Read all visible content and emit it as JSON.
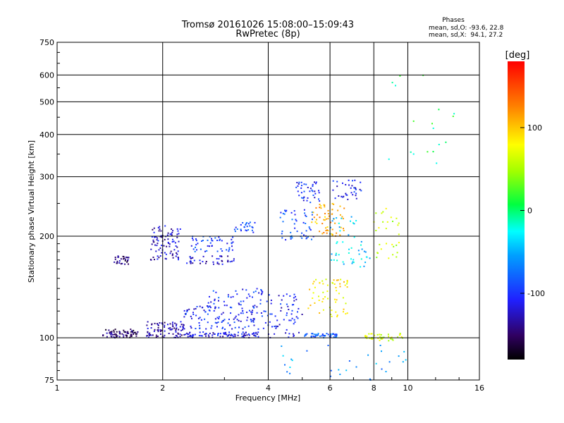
{
  "chart_data": {
    "type": "scatter",
    "title": "Tromsø 20161026 15:08:00–15:09:43",
    "subtitle": "RwPretec (8p)",
    "xlabel": "Frequency [MHz]",
    "ylabel": "Stationary phase Virtual Height [km]",
    "x_scale": "log",
    "y_scale": "log",
    "xlim": [
      1,
      16
    ],
    "ylim": [
      75,
      750
    ],
    "x_ticks": [
      1,
      2,
      4,
      6,
      8,
      10,
      16
    ],
    "y_ticks": [
      75,
      100,
      200,
      300,
      400,
      500,
      600,
      750
    ],
    "grid": true,
    "phases_box": {
      "title": "Phases",
      "line1": "mean, sd,O: -93.6, 22.8",
      "line2": "mean, sd,X:  94.1, 27.2"
    },
    "colorbar": {
      "label": "[deg]",
      "range": [
        -180,
        180
      ],
      "ticks": [
        100,
        0,
        -100
      ],
      "colormap": "rainbow"
    },
    "clusters": [
      {
        "x": [
          1.35,
          1.7
        ],
        "y": [
          100,
          106
        ],
        "phase": -150,
        "n": 70
      },
      {
        "x": [
          1.45,
          1.6
        ],
        "y": [
          165,
          175
        ],
        "phase": -145,
        "n": 30
      },
      {
        "x": [
          1.8,
          2.3
        ],
        "y": [
          100,
          112
        ],
        "phase": -130,
        "n": 90
      },
      {
        "x": [
          1.85,
          2.25
        ],
        "y": [
          170,
          215
        ],
        "phase": -125,
        "n": 90
      },
      {
        "x": [
          2.3,
          3.8
        ],
        "y": [
          100,
          104
        ],
        "phase": -115,
        "n": 90
      },
      {
        "x": [
          2.3,
          4.0
        ],
        "y": [
          106,
          125
        ],
        "phase": -105,
        "n": 130
      },
      {
        "x": [
          2.3,
          3.2
        ],
        "y": [
          165,
          175
        ],
        "phase": -120,
        "n": 40
      },
      {
        "x": [
          2.4,
          3.2
        ],
        "y": [
          180,
          200
        ],
        "phase": -95,
        "n": 50
      },
      {
        "x": [
          3.2,
          3.7
        ],
        "y": [
          205,
          220
        ],
        "phase": -90,
        "n": 25
      },
      {
        "x": [
          2.7,
          4.0
        ],
        "y": [
          125,
          140
        ],
        "phase": -100,
        "n": 40
      },
      {
        "x": [
          4.0,
          5.0
        ],
        "y": [
          100,
          135
        ],
        "phase": -110,
        "n": 60
      },
      {
        "x": [
          4.3,
          5.4
        ],
        "y": [
          195,
          240
        ],
        "phase": -90,
        "n": 50
      },
      {
        "x": [
          4.8,
          5.6
        ],
        "y": [
          250,
          290
        ],
        "phase": -105,
        "n": 40
      },
      {
        "x": [
          5.0,
          6.3
        ],
        "y": [
          100,
          103
        ],
        "phase": -80,
        "n": 50
      },
      {
        "x": [
          5.2,
          6.8
        ],
        "y": [
          115,
          150
        ],
        "phase": 85,
        "n": 60
      },
      {
        "x": [
          5.3,
          6.6
        ],
        "y": [
          200,
          250
        ],
        "phase": 110,
        "n": 60
      },
      {
        "x": [
          6.1,
          7.4
        ],
        "y": [
          255,
          295
        ],
        "phase": -110,
        "n": 35
      },
      {
        "x": [
          6.0,
          7.8
        ],
        "y": [
          160,
          230
        ],
        "phase": -40,
        "n": 50
      },
      {
        "x": [
          7.5,
          9.8
        ],
        "y": [
          98,
          103
        ],
        "phase": 60,
        "n": 40
      },
      {
        "x": [
          8.0,
          9.5
        ],
        "y": [
          170,
          250
        ],
        "phase": 60,
        "n": 30
      },
      {
        "x": [
          4.0,
          10.0
        ],
        "y": [
          75,
          95
        ],
        "phase": -60,
        "n": 30
      },
      {
        "x": [
          8.5,
          14.0
        ],
        "y": [
          300,
          600
        ],
        "phase": 0,
        "n": 18
      }
    ]
  }
}
